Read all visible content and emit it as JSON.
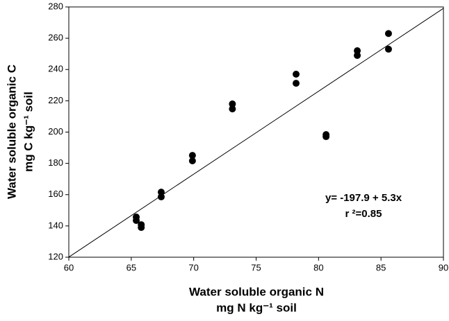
{
  "chart_data": {
    "type": "scatter",
    "x_label": [
      "Water soluble organic N",
      "mg N kg⁻¹ soil"
    ],
    "y_label": [
      "Water soluble organic C",
      "mg C kg⁻¹ soil"
    ],
    "x": [
      65.4,
      65.4,
      65.8,
      65.8,
      67.4,
      67.4,
      69.9,
      69.9,
      73.1,
      73.1,
      78.2,
      78.2,
      80.6,
      80.6,
      83.1,
      83.1,
      85.6,
      85.6
    ],
    "series": [
      {
        "color": "#000000",
        "values": [
          145.7,
          143.5,
          140.8,
          139.0,
          161.6,
          158.6,
          185.1,
          181.6,
          218.0,
          214.8,
          237.0,
          231.2,
          198.4,
          197.1,
          252.0,
          249.0,
          263.0,
          253.0
        ]
      }
    ],
    "regression": {
      "intercept": -197.9,
      "slope": 5.3,
      "label": "y= -197.9 + 5.3x",
      "r2_label": "r ²=0.85"
    },
    "xlim": [
      60,
      90
    ],
    "xticks": [
      60,
      65,
      70,
      75,
      80,
      85,
      90
    ],
    "ylim": [
      120,
      280
    ],
    "yticks": [
      120,
      140,
      160,
      180,
      200,
      220,
      240,
      260,
      280
    ],
    "grid": false
  }
}
